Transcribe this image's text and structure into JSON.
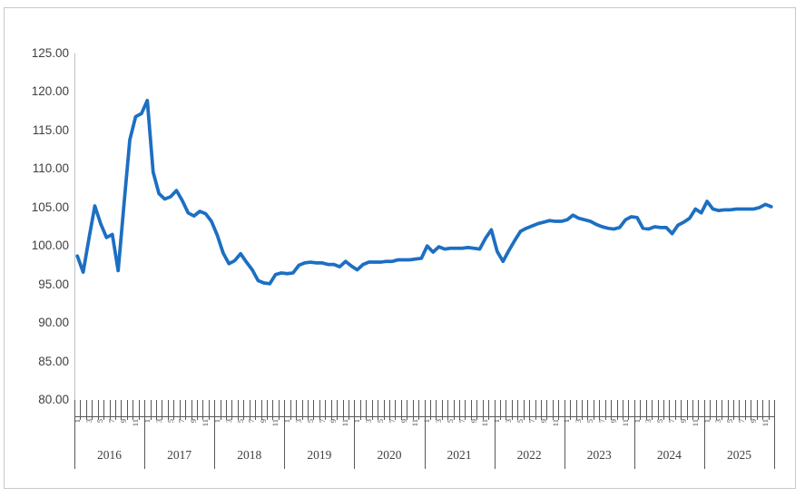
{
  "figure": {
    "background": "#ffffff",
    "border_color": "#c9c9c9"
  },
  "chart_data": {
    "type": "line",
    "title": "",
    "x_start": "2016-01",
    "x_end": "2025-12",
    "frequency": "monthly",
    "months_per_year": 12,
    "years": [
      "2016",
      "2017",
      "2018",
      "2019",
      "2020",
      "2021",
      "2022",
      "2023",
      "2024",
      "2025"
    ],
    "month_tick_labels_per_year": [
      "1",
      "3",
      "5",
      "7",
      "9",
      "11"
    ],
    "ylim": [
      80,
      125
    ],
    "y_tick_step": 5,
    "y_tick_labels": [
      "125.00",
      "120.00",
      "115.00",
      "110.00",
      "105.00",
      "100.00",
      "95.00",
      "90.00",
      "85.00",
      "80.00"
    ],
    "grid": false,
    "legend": false,
    "line_color": "#1c6fc2",
    "axis_line_color": "#bfbfbf",
    "tick_color": "#595959",
    "label_color": "#404040",
    "series": [
      {
        "name": "",
        "values": [
          98.7,
          96.6,
          101.0,
          105.2,
          102.9,
          101.1,
          101.5,
          96.8,
          105.4,
          113.8,
          116.8,
          117.2,
          118.9,
          109.6,
          106.8,
          106.1,
          106.4,
          107.2,
          105.9,
          104.3,
          103.9,
          104.5,
          104.2,
          103.2,
          101.4,
          99.1,
          97.7,
          98.1,
          99.0,
          97.9,
          96.9,
          95.5,
          95.2,
          95.1,
          96.3,
          96.5,
          96.4,
          96.5,
          97.5,
          97.8,
          97.9,
          97.8,
          97.8,
          97.6,
          97.6,
          97.3,
          98.0,
          97.4,
          96.9,
          97.6,
          97.9,
          97.9,
          97.9,
          98.0,
          98.0,
          98.2,
          98.2,
          98.2,
          98.3,
          98.4,
          100.0,
          99.2,
          99.9,
          99.6,
          99.7,
          99.7,
          99.7,
          99.8,
          99.7,
          99.6,
          101.0,
          102.1,
          99.3,
          98.0,
          99.4,
          100.7,
          101.9,
          102.3,
          102.6,
          102.9,
          103.1,
          103.3,
          103.2,
          103.2,
          103.4,
          104.0,
          103.6,
          103.4,
          103.2,
          102.8,
          102.5,
          102.3,
          102.2,
          102.4,
          103.4,
          103.8,
          103.7,
          102.3,
          102.2,
          102.5,
          102.4,
          102.4,
          101.6,
          102.7,
          103.1,
          103.6,
          104.8,
          104.3,
          105.8,
          104.8,
          104.6,
          104.7,
          104.7,
          104.8,
          104.8,
          104.8,
          104.8,
          105.0,
          105.4,
          105.1
        ]
      }
    ]
  }
}
